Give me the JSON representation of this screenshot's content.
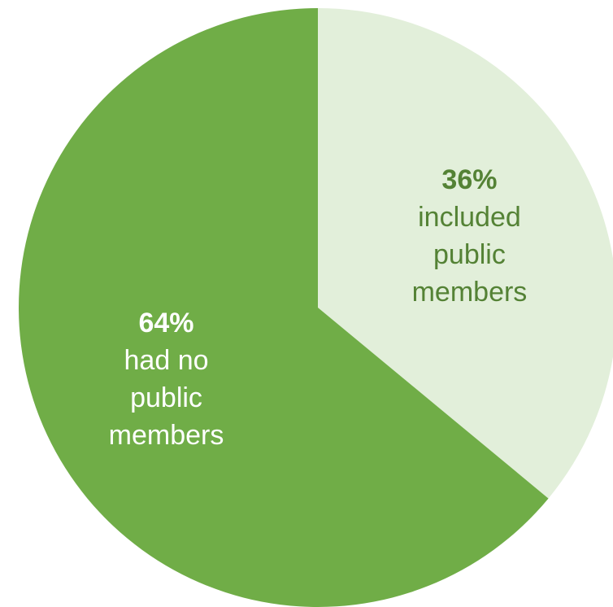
{
  "chart_data": {
    "type": "pie",
    "title": "",
    "slices": [
      {
        "value": 36,
        "percent_label": "36%",
        "label_lines": [
          "included",
          "public",
          "members"
        ],
        "color": "#e2efda",
        "text_color": "#548235"
      },
      {
        "value": 64,
        "percent_label": "64%",
        "label_lines": [
          "had no",
          "public",
          "members"
        ],
        "color": "#70ad47",
        "text_color": "#ffffff"
      }
    ],
    "start_angle_deg": 0,
    "direction": "clockwise",
    "legend": "none"
  }
}
